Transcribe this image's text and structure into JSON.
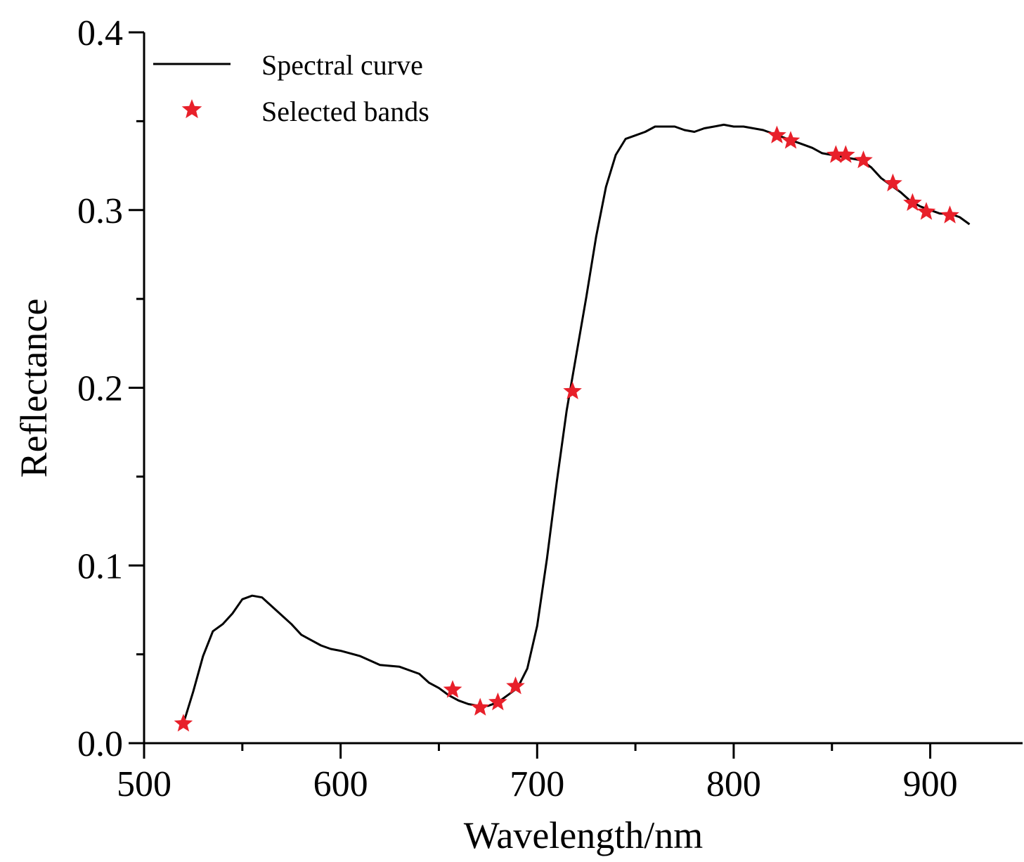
{
  "chart_data": {
    "type": "line",
    "xlabel": "Wavelength/nm",
    "ylabel": "Reflectance",
    "xlim": [
      500,
      947
    ],
    "ylim": [
      0,
      0.4
    ],
    "xticks": [
      "500",
      "600",
      "700",
      "800",
      "900"
    ],
    "yticks": [
      "0.0",
      "0.1",
      "0.2",
      "0.3",
      "0.4"
    ],
    "grid": false,
    "legend_position": "top-left",
    "legend": [
      "Spectral curve",
      "Selected bands"
    ],
    "colors": {
      "curve": "#000000",
      "marker": "#e8202a"
    },
    "series": [
      {
        "name": "Spectral curve",
        "style": "line",
        "x": [
          520,
          525,
          530,
          535,
          540,
          545,
          550,
          555,
          560,
          565,
          570,
          575,
          580,
          585,
          590,
          595,
          600,
          610,
          620,
          630,
          640,
          645,
          650,
          655,
          660,
          665,
          670,
          675,
          680,
          685,
          690,
          695,
          700,
          705,
          710,
          715,
          720,
          725,
          730,
          735,
          740,
          745,
          750,
          755,
          760,
          765,
          770,
          775,
          780,
          785,
          790,
          795,
          800,
          805,
          810,
          815,
          820,
          825,
          830,
          835,
          840,
          845,
          850,
          855,
          860,
          865,
          870,
          875,
          880,
          885,
          890,
          895,
          900,
          905,
          910,
          915,
          920
        ],
        "y": [
          0.011,
          0.029,
          0.049,
          0.063,
          0.067,
          0.073,
          0.081,
          0.083,
          0.082,
          0.077,
          0.072,
          0.067,
          0.061,
          0.058,
          0.055,
          0.053,
          0.052,
          0.049,
          0.044,
          0.043,
          0.039,
          0.034,
          0.031,
          0.027,
          0.024,
          0.022,
          0.021,
          0.021,
          0.023,
          0.027,
          0.031,
          0.042,
          0.066,
          0.104,
          0.147,
          0.187,
          0.219,
          0.251,
          0.285,
          0.313,
          0.331,
          0.34,
          0.342,
          0.344,
          0.347,
          0.347,
          0.347,
          0.345,
          0.344,
          0.346,
          0.347,
          0.348,
          0.347,
          0.347,
          0.346,
          0.345,
          0.343,
          0.341,
          0.339,
          0.337,
          0.335,
          0.332,
          0.331,
          0.33,
          0.329,
          0.328,
          0.324,
          0.318,
          0.314,
          0.31,
          0.305,
          0.302,
          0.3,
          0.298,
          0.298,
          0.296,
          0.292
        ]
      },
      {
        "name": "Selected bands",
        "style": "marker-star",
        "x": [
          520,
          657,
          671,
          680,
          689,
          718,
          822,
          829,
          852,
          857,
          866,
          881,
          891,
          898,
          910
        ],
        "y": [
          0.011,
          0.03,
          0.02,
          0.023,
          0.032,
          0.198,
          0.342,
          0.339,
          0.331,
          0.331,
          0.328,
          0.315,
          0.304,
          0.299,
          0.297
        ]
      }
    ]
  }
}
